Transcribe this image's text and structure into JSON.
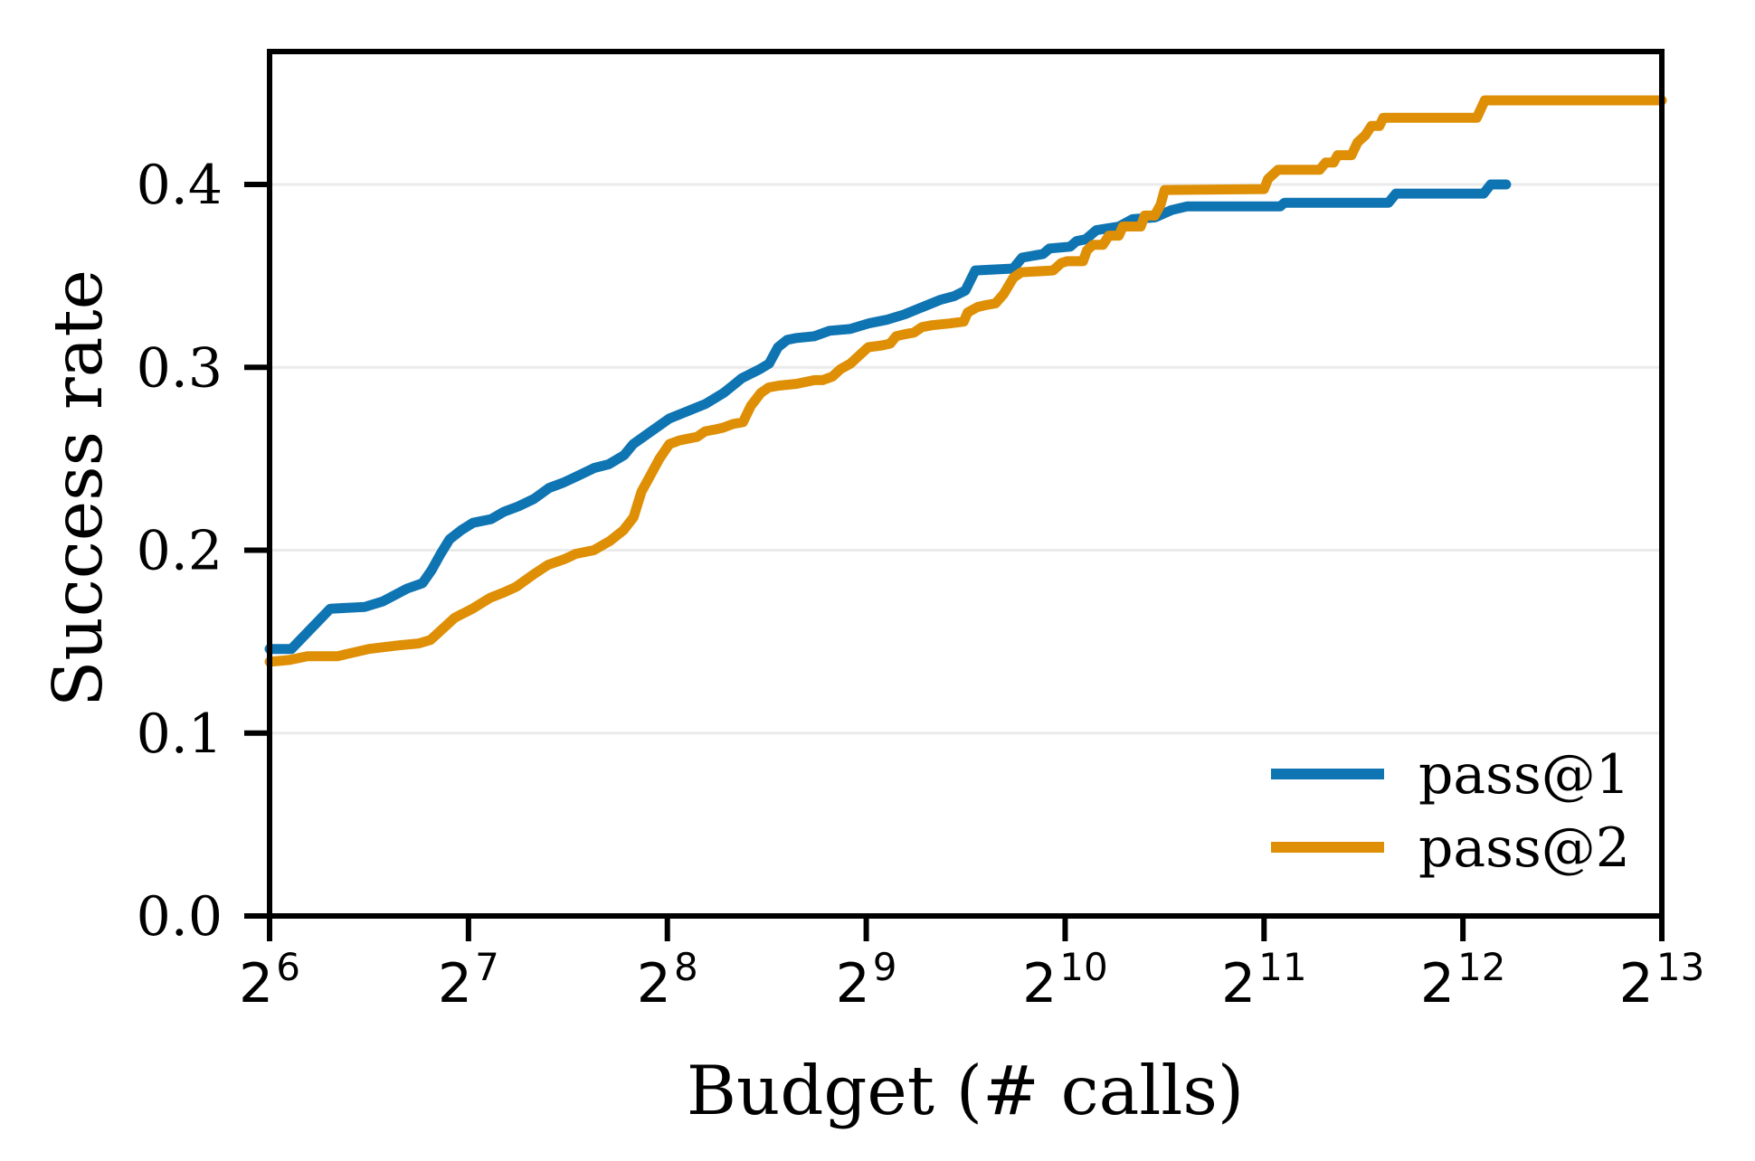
{
  "chart_data": {
    "type": "line",
    "title": "",
    "xlabel": "Budget (# calls)",
    "ylabel": "Success rate",
    "x_scale": "log2",
    "xlim_log2": [
      6,
      13
    ],
    "ylim": [
      0.0,
      0.4727
    ],
    "x_tick_base": "2",
    "x_tick_exponents": [
      "6",
      "7",
      "8",
      "9",
      "10",
      "11",
      "12",
      "13"
    ],
    "y_tick_values": [
      0.0,
      0.1,
      0.2,
      0.3,
      0.4
    ],
    "y_tick_labels": [
      "0.0",
      "0.1",
      "0.2",
      "0.3",
      "0.4"
    ],
    "grid": "horizontal",
    "grid_color": "#ebebeb",
    "axis_color": "#000000",
    "legend_position": "lower right",
    "series": [
      {
        "name": "pass@1",
        "color": "#0f74b2",
        "points": [
          [
            6.0,
            0.146
          ],
          [
            6.11,
            0.146
          ],
          [
            6.305,
            0.168
          ],
          [
            6.478,
            0.169
          ],
          [
            6.569,
            0.172
          ],
          [
            6.691,
            0.179
          ],
          [
            6.769,
            0.182
          ],
          [
            6.814,
            0.189
          ],
          [
            6.86,
            0.198
          ],
          [
            6.905,
            0.206
          ],
          [
            6.964,
            0.211
          ],
          [
            7.023,
            0.215
          ],
          [
            7.114,
            0.217
          ],
          [
            7.178,
            0.221
          ],
          [
            7.251,
            0.224
          ],
          [
            7.328,
            0.228
          ],
          [
            7.405,
            0.234
          ],
          [
            7.478,
            0.237
          ],
          [
            7.556,
            0.241
          ],
          [
            7.633,
            0.245
          ],
          [
            7.706,
            0.247
          ],
          [
            7.783,
            0.252
          ],
          [
            7.828,
            0.258
          ],
          [
            7.919,
            0.265
          ],
          [
            8.01,
            0.272
          ],
          [
            8.078,
            0.275
          ],
          [
            8.192,
            0.28
          ],
          [
            8.283,
            0.286
          ],
          [
            8.329,
            0.29
          ],
          [
            8.374,
            0.294
          ],
          [
            8.465,
            0.299
          ],
          [
            8.511,
            0.302
          ],
          [
            8.556,
            0.311
          ],
          [
            8.602,
            0.315
          ],
          [
            8.647,
            0.316
          ],
          [
            8.738,
            0.317
          ],
          [
            8.815,
            0.32
          ],
          [
            8.92,
            0.321
          ],
          [
            9.011,
            0.324
          ],
          [
            9.102,
            0.326
          ],
          [
            9.193,
            0.329
          ],
          [
            9.284,
            0.333
          ],
          [
            9.375,
            0.337
          ],
          [
            9.443,
            0.339
          ],
          [
            9.498,
            0.342
          ],
          [
            9.548,
            0.353
          ],
          [
            9.739,
            0.354
          ],
          [
            9.784,
            0.36
          ],
          [
            9.889,
            0.362
          ],
          [
            9.921,
            0.365
          ],
          [
            10.025,
            0.366
          ],
          [
            10.057,
            0.369
          ],
          [
            10.103,
            0.37
          ],
          [
            10.157,
            0.375
          ],
          [
            10.271,
            0.377
          ],
          [
            10.339,
            0.381
          ],
          [
            10.453,
            0.382
          ],
          [
            10.535,
            0.386
          ],
          [
            10.612,
            0.388
          ],
          [
            11.081,
            0.388
          ],
          [
            11.103,
            0.39
          ],
          [
            11.626,
            0.39
          ],
          [
            11.663,
            0.395
          ],
          [
            12.104,
            0.395
          ],
          [
            12.14,
            0.4
          ],
          [
            12.217,
            0.4
          ]
        ]
      },
      {
        "name": "pass@2",
        "color": "#de8f05",
        "points": [
          [
            6.0,
            0.139
          ],
          [
            6.1,
            0.14
          ],
          [
            6.19,
            0.142
          ],
          [
            6.34,
            0.142
          ],
          [
            6.5,
            0.146
          ],
          [
            6.65,
            0.148
          ],
          [
            6.75,
            0.149
          ],
          [
            6.81,
            0.151
          ],
          [
            6.93,
            0.163
          ],
          [
            7.02,
            0.168
          ],
          [
            7.11,
            0.174
          ],
          [
            7.18,
            0.177
          ],
          [
            7.24,
            0.18
          ],
          [
            7.33,
            0.187
          ],
          [
            7.4,
            0.192
          ],
          [
            7.48,
            0.195
          ],
          [
            7.54,
            0.198
          ],
          [
            7.63,
            0.2
          ],
          [
            7.71,
            0.205
          ],
          [
            7.78,
            0.211
          ],
          [
            7.83,
            0.218
          ],
          [
            7.87,
            0.232
          ],
          [
            7.92,
            0.242
          ],
          [
            7.96,
            0.25
          ],
          [
            8.01,
            0.258
          ],
          [
            8.06,
            0.26
          ],
          [
            8.15,
            0.262
          ],
          [
            8.19,
            0.265
          ],
          [
            8.24,
            0.266
          ],
          [
            8.28,
            0.267
          ],
          [
            8.33,
            0.269
          ],
          [
            8.38,
            0.27
          ],
          [
            8.42,
            0.279
          ],
          [
            8.47,
            0.286
          ],
          [
            8.51,
            0.289
          ],
          [
            8.56,
            0.29
          ],
          [
            8.65,
            0.291
          ],
          [
            8.74,
            0.293
          ],
          [
            8.78,
            0.293
          ],
          [
            8.83,
            0.295
          ],
          [
            8.87,
            0.299
          ],
          [
            8.92,
            0.302
          ],
          [
            8.97,
            0.307
          ],
          [
            9.01,
            0.311
          ],
          [
            9.08,
            0.312
          ],
          [
            9.12,
            0.313
          ],
          [
            9.15,
            0.317
          ],
          [
            9.19,
            0.318
          ],
          [
            9.24,
            0.319
          ],
          [
            9.28,
            0.322
          ],
          [
            9.33,
            0.323
          ],
          [
            9.42,
            0.324
          ],
          [
            9.49,
            0.325
          ],
          [
            9.51,
            0.33
          ],
          [
            9.56,
            0.333
          ],
          [
            9.6,
            0.334
          ],
          [
            9.65,
            0.335
          ],
          [
            9.69,
            0.34
          ],
          [
            9.74,
            0.349
          ],
          [
            9.78,
            0.352
          ],
          [
            9.94,
            0.353
          ],
          [
            9.98,
            0.357
          ],
          [
            10.01,
            0.358
          ],
          [
            10.09,
            0.358
          ],
          [
            10.11,
            0.364
          ],
          [
            10.14,
            0.367
          ],
          [
            10.19,
            0.367
          ],
          [
            10.22,
            0.372
          ],
          [
            10.27,
            0.372
          ],
          [
            10.29,
            0.377
          ],
          [
            10.38,
            0.377
          ],
          [
            10.4,
            0.383
          ],
          [
            10.45,
            0.383
          ],
          [
            10.48,
            0.389
          ],
          [
            10.5,
            0.397
          ],
          [
            11.0,
            0.3975
          ],
          [
            11.02,
            0.403
          ],
          [
            11.07,
            0.408
          ],
          [
            11.28,
            0.408
          ],
          [
            11.31,
            0.412
          ],
          [
            11.35,
            0.412
          ],
          [
            11.37,
            0.416
          ],
          [
            11.44,
            0.416
          ],
          [
            11.47,
            0.423
          ],
          [
            11.51,
            0.427
          ],
          [
            11.54,
            0.432
          ],
          [
            11.58,
            0.432
          ],
          [
            11.6,
            0.4365
          ],
          [
            12.07,
            0.4365
          ],
          [
            12.11,
            0.446
          ],
          [
            13.0,
            0.446
          ]
        ]
      }
    ]
  },
  "legend": {
    "entries": [
      {
        "label": "pass@1"
      },
      {
        "label": "pass@2"
      }
    ]
  }
}
